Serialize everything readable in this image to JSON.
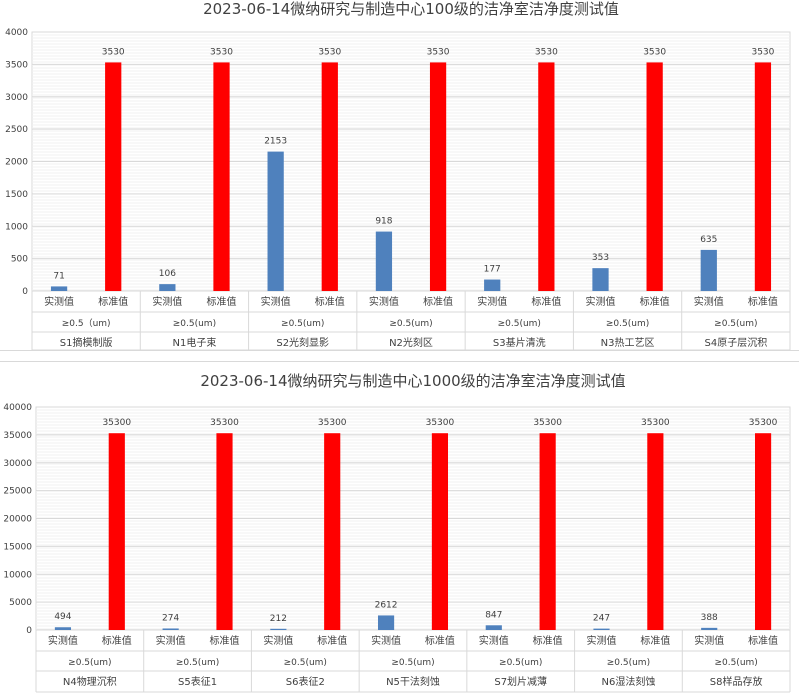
{
  "colors": {
    "actual": "#4f81bd",
    "standard": "#ff0000",
    "grid": "#d9d9d9",
    "text": "#404040"
  },
  "chart_data": [
    {
      "type": "bar",
      "title": "2023-06-14微纳研究与制造中心100级的洁净室洁净度测试值",
      "ylim": [
        0,
        4000
      ],
      "yticks": [
        0,
        500,
        1000,
        1500,
        2000,
        2500,
        3000,
        3500,
        4000
      ],
      "bar_labels": [
        "实测值",
        "标准值"
      ],
      "groups": [
        {
          "location": "S1摘模制版",
          "particle": "≥0.5（um)",
          "actual": 71,
          "standard": 3530
        },
        {
          "location": "N1电子束",
          "particle": "≥0.5(um)",
          "actual": 106,
          "standard": 3530
        },
        {
          "location": "S2光刻显影",
          "particle": "≥0.5(um)",
          "actual": 2153,
          "standard": 3530
        },
        {
          "location": "N2光刻区",
          "particle": "≥0.5(um)",
          "actual": 918,
          "standard": 3530
        },
        {
          "location": "S3基片清洗",
          "particle": "≥0.5(um)",
          "actual": 177,
          "standard": 3530
        },
        {
          "location": "N3热工艺区",
          "particle": "≥0.5(um)",
          "actual": 353,
          "standard": 3530
        },
        {
          "location": "S4原子层沉积",
          "particle": "≥0.5(um)",
          "actual": 635,
          "standard": 3530
        }
      ],
      "grid": true,
      "legend": "none"
    },
    {
      "type": "bar",
      "title": "2023-06-14微纳研究与制造中心1000级的洁净室洁净度测试值",
      "ylim": [
        0,
        40000
      ],
      "yticks": [
        0,
        5000,
        10000,
        15000,
        20000,
        25000,
        30000,
        35000,
        40000
      ],
      "bar_labels": [
        "实测值",
        "标准值"
      ],
      "groups": [
        {
          "location": "N4物理沉积",
          "particle": "≥0.5(um)",
          "actual": 494,
          "standard": 35300
        },
        {
          "location": "S5表征1",
          "particle": "≥0.5(um)",
          "actual": 274,
          "standard": 35300
        },
        {
          "location": "S6表征2",
          "particle": "≥0.5(um)",
          "actual": 212,
          "standard": 35300
        },
        {
          "location": "N5干法刻蚀",
          "particle": "≥0.5(um)",
          "actual": 2612,
          "standard": 35300
        },
        {
          "location": "S7划片减薄",
          "particle": "≥0.5(um)",
          "actual": 847,
          "standard": 35300
        },
        {
          "location": "N6湿法刻蚀",
          "particle": "≥0.5(um)",
          "actual": 247,
          "standard": 35300
        },
        {
          "location": "S8样品存放",
          "particle": "≥0.5(um)",
          "actual": 388,
          "standard": 35300
        }
      ],
      "grid": true,
      "legend": "none"
    }
  ]
}
